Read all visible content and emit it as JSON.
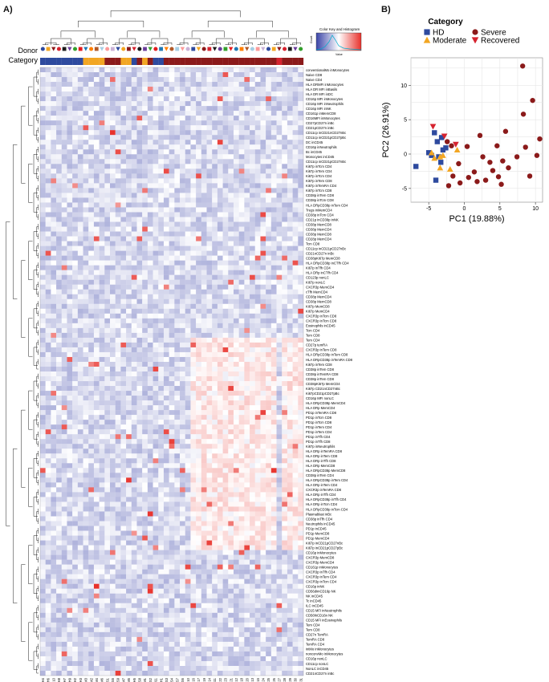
{
  "panel_a_label": "A)",
  "panel_b_label": "B)",
  "heatmap": {
    "row_label_donor": "Donor",
    "row_label_category": "Category",
    "key_title": "Color Key and Histogram",
    "key_ylabel": "Count",
    "key_xlabel": "Value",
    "columns": [
      "H4",
      "H6",
      "H10",
      "H8",
      "H7",
      "H9",
      "H2",
      "H3",
      "M3",
      "M2",
      "M4",
      "M6",
      "S1",
      "S5",
      "S9",
      "M7",
      "M5",
      "H5",
      "S8",
      "M1",
      "S2",
      "H11",
      "H1",
      "S3",
      "S4",
      "S7",
      "S6",
      "S10",
      "S16",
      "S17",
      "S19",
      "S14",
      "S11",
      "S22",
      "S23",
      "S21",
      "S12",
      "S18",
      "S20",
      "S13",
      "S15",
      "S24",
      "S25",
      "S26",
      "S27",
      "S28",
      "S29",
      "S30",
      "S31"
    ],
    "column_categories": [
      "HD",
      "HD",
      "HD",
      "HD",
      "HD",
      "HD",
      "HD",
      "HD",
      "Moderate",
      "Moderate",
      "Moderate",
      "Moderate",
      "Severe",
      "Severe",
      "Severe",
      "Moderate",
      "Moderate",
      "HD",
      "Severe",
      "Moderate",
      "Severe",
      "HD",
      "HD",
      "Severe",
      "Severe",
      "Severe",
      "Severe",
      "Severe",
      "Severe",
      "Severe",
      "Severe",
      "Severe",
      "Severe",
      "Severe",
      "Severe",
      "Severe",
      "Severe",
      "Severe",
      "Severe",
      "Severe",
      "Severe",
      "Severe",
      "Severe",
      "Severe",
      "Recovered",
      "Severe",
      "Severe",
      "Severe",
      "Severe"
    ],
    "rows": [
      "conventionalMo inMonocytes",
      "Naive CD8",
      "Naive CD4",
      "HLA DRMFI inMonocytes",
      "HLA DR MFI inBasils",
      "HLA DR MFI inDC",
      "CD16p MFI inMonocytes",
      "CD16p MFI inNeutrophils",
      "CD16p MFI inNK",
      "CD161p inMemCD8",
      "CD16MFI inMonocytes",
      "CD27pCD27n inBc",
      "CD21pCD27n inBc",
      "CD11cp inCD21nCD27nBc",
      "CD11cp inCD21pCD27pBc",
      "DC inCD45",
      "CD16p inNeutrophils",
      "Bc inCD45",
      "Monocytes inCD45",
      "CD11cp inCD21pCD27nBc",
      "Ki67p inTcm CD4",
      "Ki67p inTem CD4",
      "Ki67p inTcm CD4",
      "Ki67p inTem CD8",
      "Ki67p inTemRA CD4",
      "Ki67p inTcm CD8",
      "CD38p inTem CD8",
      "CD38p inTcm CD8",
      "HLA DRpCD38p inTem CD4",
      "Tregs inMemCD4",
      "CD38p inTcm CD4",
      "CD21p inCD38p inNK",
      "CD38p MemCD8",
      "CD38p MemCD4",
      "CD38p MemCD8",
      "CD28p MemCD4",
      "Tcm CD8",
      "CD11cp inCD21pCD27nBc",
      "CD21nCD27n inBc",
      "CD38pKi67p MemCD8",
      "HLA DRpCD38p inCTfh CD4",
      "Ki67p inTfh CD4",
      "HLA DRp inCTfh CD4",
      "CD123p nonLC",
      "Ki67p nonLC",
      "CXCR3p MemCD4",
      "cTfh MemCD4",
      "CD38p MemCD4",
      "CD38p MemCD8",
      "Ki67p MemCD8",
      "Ki67p MemCD4",
      "CXCR3p inTcm CD8",
      "CXCR3p inTcm CD8",
      "Eosinophils inCD45",
      "Tcm CD4",
      "Tem CD8",
      "Tem CD4",
      "CD27p temRA",
      "CXCR3p inTem CD8",
      "HLA DRpCD38p inTem CD8",
      "HLA DRpCD38p inTemRA CD8",
      "Ki67p inTem CD8",
      "CD38p inTem CD8",
      "CD38p inTemRA CD8",
      "CD38p inTem CD8",
      "CD38pKi67p MemCD4",
      "Ki67p CD21nCD27nBc",
      "Ki67pCD21pCD27pBc",
      "CD16p MFI nonLC",
      "HLA DRpCD38p MemCD4",
      "HLA DRp MemCD4",
      "PD1p inTemRA CD8",
      "PD1p inTcm CD8",
      "PD1p inTcm CD8",
      "PD1p inTem CD4",
      "PD1p inTem CD4",
      "PD1p inTfh CD4",
      "PD1p inTfh CD8",
      "Ki67p inNeutrophils",
      "HLA DRp inTemRA CD8",
      "HLA DRp inTem CD8",
      "HLA DRp inTfh CD8",
      "HLA DRp MemCD8",
      "HLA DRpCD38p MemCD8",
      "CD38p inTem CD4",
      "HLA DRpCD38p inTem CD4",
      "HLA DRp inTem CD4",
      "CXCR3p inTemRA CD8",
      "HLA DRp inTfh CD4",
      "HLA DRpCD38p inTfh CD4",
      "HLA DRp inTcm CD4",
      "HLA DRpCD38p inTcm CD4",
      "Plasmablast inBc",
      "CD38p inTfh CD4",
      "Neutrophils inCD45",
      "PD1p inCD45",
      "PD1p MemCD8",
      "PD1p MemCD4",
      "Ki67p inCD21pCD27nBc",
      "Ki67p inCD21pCD27pBc",
      "CD16p inMonocytes",
      "CXCR3p MemCD8",
      "CXCR3p MemCD4",
      "CD161p inMonocytes",
      "CXCR3p inTfh CD4",
      "CXCR3p inTem CD4",
      "CXCR3p inTcm CD4",
      "CD16p inNK",
      "CD56dimCD16p NK",
      "NK inCD45",
      "Tc inCD45",
      "ILC inCD45",
      "CD15 MFI inNeutrophils",
      "CD56hiCD16n NK",
      "CD15 MFI inEosinophils",
      "Tem CD4",
      "Tem CD8",
      "CD27n TemRA",
      "TemRA CD8",
      "TemRA CD4",
      "intMo inMonocytes",
      "nonconvMo inMonocytes",
      "CD16p nonLC",
      "CD11cp nonLC",
      "NonLC inCD45",
      "CD21nCD27n inBc"
    ]
  },
  "chart_data": [
    {
      "type": "heatmap",
      "title": "",
      "color_scale": {
        "low": "#5a5fb5",
        "mid": "#ffffff",
        "high": "#e8312b"
      },
      "note_on_values": "values are standardized (z-scores) estimated from cell color; rows x columns matrix generated in script from the listed row/column labels"
    },
    {
      "type": "scatter",
      "title": "Category",
      "xlabel": "PC1 (19.88%)",
      "ylabel": "PC2 (26.91%)",
      "xlim": [
        -7.5,
        11
      ],
      "ylim": [
        -7,
        14
      ],
      "xticks": [
        -5,
        0,
        5,
        10
      ],
      "yticks": [
        -5,
        0,
        5,
        10
      ],
      "grid": true,
      "legend_position": "top",
      "series": [
        {
          "name": "HD",
          "marker": "square",
          "color": "#2e4a9e",
          "points": [
            [
              -6.8,
              -1.8
            ],
            [
              -4.2,
              3.1
            ],
            [
              -3.8,
              1.8
            ],
            [
              -3.2,
              2.4
            ],
            [
              -3.6,
              -0.4
            ],
            [
              -4.6,
              -0.2
            ],
            [
              -4.0,
              -3.8
            ],
            [
              -3.0,
              0.6
            ],
            [
              -5.0,
              0.2
            ],
            [
              -2.6,
              0.9
            ],
            [
              -3.3,
              -1.2
            ]
          ]
        },
        {
          "name": "Moderate",
          "marker": "triangle-up",
          "color": "#f2a623",
          "points": [
            [
              -4.6,
              0.2
            ],
            [
              -3.0,
              -0.2
            ],
            [
              -1.0,
              0.6
            ],
            [
              -4.2,
              -0.6
            ],
            [
              -3.4,
              -0.4
            ],
            [
              -2.0,
              -2.2
            ],
            [
              -3.4,
              -2.0
            ]
          ]
        },
        {
          "name": "Severe",
          "marker": "circle",
          "color": "#8b1a1a",
          "points": [
            [
              8.2,
              12.8
            ],
            [
              9.6,
              7.8
            ],
            [
              10.6,
              2.2
            ],
            [
              8.3,
              5.8
            ],
            [
              5.8,
              3.3
            ],
            [
              4.6,
              1.2
            ],
            [
              2.2,
              2.7
            ],
            [
              0.4,
              1.1
            ],
            [
              -1.8,
              1.2
            ],
            [
              -2.4,
              1.8
            ],
            [
              2.6,
              -0.4
            ],
            [
              3.6,
              -1.2
            ],
            [
              5.4,
              -1.0
            ],
            [
              6.2,
              -2.0
            ],
            [
              7.4,
              -0.4
            ],
            [
              8.6,
              1.0
            ],
            [
              10.2,
              -0.2
            ],
            [
              9.2,
              -3.2
            ],
            [
              4.8,
              -3.3
            ],
            [
              3.0,
              -3.8
            ],
            [
              1.8,
              -4.0
            ],
            [
              0.6,
              -3.4
            ],
            [
              -0.6,
              -4.2
            ],
            [
              -1.6,
              -3.2
            ],
            [
              -2.2,
              -4.6
            ],
            [
              -0.8,
              -1.4
            ],
            [
              1.4,
              -2.6
            ],
            [
              4.0,
              -2.4
            ],
            [
              5.2,
              -4.4
            ]
          ]
        },
        {
          "name": "Recovered",
          "marker": "triangle-down",
          "color": "#d6232f",
          "points": [
            [
              -4.4,
              4.0
            ],
            [
              -2.8,
              2.6
            ],
            [
              -1.2,
              1.4
            ]
          ]
        }
      ]
    }
  ]
}
